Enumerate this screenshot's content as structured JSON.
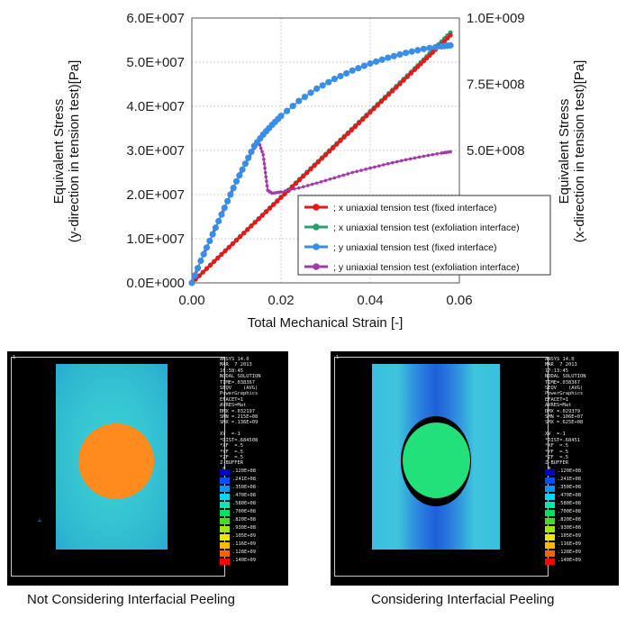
{
  "chart_data": {
    "type": "line",
    "xlabel": "Total Mechanical Strain [-]",
    "ylabel_left": [
      "Equivalent Stress",
      "(y-direction in tension test)[Pa]"
    ],
    "ylabel_right": [
      "Equivalent Stress",
      "(x-direction in tension test)[Pa]"
    ],
    "xlim": [
      0,
      0.06
    ],
    "ylim_left": [
      0,
      60000000
    ],
    "ylim_right": [
      0,
      1000000000
    ],
    "x_ticks": [
      "0.00",
      "0.02",
      "0.04",
      "0.06"
    ],
    "y_ticks_left": [
      "0.0E+000",
      "1.0E+007",
      "2.0E+007",
      "3.0E+007",
      "4.0E+007",
      "5.0E+007",
      "6.0E+007"
    ],
    "y_ticks_right": [
      "5.0E+008",
      "7.5E+008",
      "1.0E+009"
    ],
    "grid": true,
    "legend_position": "bottom-right",
    "series": [
      {
        "name": "x uniaxial tension test (fixed interface)",
        "color": "#e31a1c",
        "axis": "right",
        "x": [
          0,
          0.01,
          0.02,
          0.03,
          0.04,
          0.05,
          0.058
        ],
        "y": [
          0,
          161000000,
          322000000,
          483000000,
          644000000,
          805000000,
          935000000
        ]
      },
      {
        "name": "x uniaxial tension test (exfoliation interface)",
        "color": "#2e9e6e",
        "axis": "right",
        "x": [
          0,
          0.01,
          0.02,
          0.03,
          0.04,
          0.05,
          0.058
        ],
        "y": [
          0,
          162000000,
          324000000,
          486000000,
          648000000,
          810000000,
          945000000
        ]
      },
      {
        "name": "y uniaxial tension test (fixed interface)",
        "color": "#3a8ee6",
        "axis": "left",
        "x": [
          0,
          0.002,
          0.004,
          0.006,
          0.008,
          0.01,
          0.012,
          0.014,
          0.016,
          0.018,
          0.02,
          0.024,
          0.028,
          0.032,
          0.036,
          0.04,
          0.044,
          0.048,
          0.052,
          0.056,
          0.058
        ],
        "y": [
          0,
          5000000,
          9500000,
          14000000,
          18500000,
          23000000,
          27000000,
          31000000,
          33600000,
          35800000,
          37800000,
          41200000,
          44000000,
          46200000,
          48100000,
          49700000,
          51000000,
          52100000,
          53000000,
          53600000,
          53800000
        ]
      },
      {
        "name": "y uniaxial tension test (exfoliation interface)",
        "color": "#a23ba8",
        "axis": "left",
        "x": [
          0,
          0.002,
          0.004,
          0.006,
          0.008,
          0.01,
          0.012,
          0.014,
          0.015,
          0.016,
          0.0165,
          0.017,
          0.018,
          0.02,
          0.024,
          0.028,
          0.032,
          0.036,
          0.04,
          0.044,
          0.048,
          0.052,
          0.056,
          0.058
        ],
        "y": [
          0,
          5000000,
          9500000,
          14000000,
          18500000,
          23000000,
          27000000,
          30500000,
          32000000,
          29000000,
          25000000,
          21000000,
          20300000,
          20600000,
          21500000,
          22600000,
          23800000,
          25000000,
          26000000,
          27000000,
          27900000,
          28700000,
          29400000,
          29700000
        ]
      }
    ]
  },
  "panels": [
    {
      "caption": "Not Considering Interfacial Peeling",
      "plate_color": "#38c7d3",
      "inclusion_color": "#ff8a1e",
      "corner_label": "1",
      "info": "ANSYS 14.0\nMAR  7 2013\n16:58:45\nNODAL SOLUTION\nTIME=.038367\nSEQV    (AVG)\nPowerGraphics\nEFACET=1\nAVRES=Mat\nDMX =.032197\nSMN =.215E+08\nSMX =.136E+09\n\nXV  =-1\n*DIST=.684508\n*XF  =.5\n*YF  =.5\n*ZF  =.5\nZ-BUFFER\n 0",
      "scale_values": [
        ".120E+08",
        ".241E+08",
        ".350E+08",
        ".470E+08",
        ".580E+08",
        ".700E+08",
        ".820E+08",
        ".930E+08",
        ".105E+09",
        ".116E+09",
        ".128E+09",
        ".140E+09"
      ]
    },
    {
      "caption": "Considering Interfacial Peeling",
      "plate_color": "#3bbfe0",
      "inclusion_color": "#22e07a",
      "corner_label": "1",
      "info": "ANSYS 14.0\nMAR  7 2013\n17:13:45\nNODAL SOLUTION\nTIME=.038367\nSEQV    (AVG)\nPowerGraphics\nEFACET=1\nAVRES=Mat\nDMX =.029379\nSMN =.106E+07\nSMX =.625E+08\n\nXV  =-1\n*DIST=.68451\n*XF  =.5\n*YF  =.5\n*ZF  =.5\nZ-BUFFER\n 0",
      "scale_values": [
        ".120E+08",
        ".241E+08",
        ".350E+08",
        ".470E+08",
        ".580E+08",
        ".700E+08",
        ".820E+08",
        ".930E+08",
        ".105E+09",
        ".116E+09",
        ".128E+09",
        ".140E+09"
      ]
    }
  ],
  "scale_colors": [
    "#0000c8",
    "#0050ff",
    "#0098ff",
    "#00d8ff",
    "#00e8b0",
    "#00e060",
    "#40e020",
    "#a0e800",
    "#e8e800",
    "#ffb800",
    "#ff6000",
    "#ff0000"
  ]
}
